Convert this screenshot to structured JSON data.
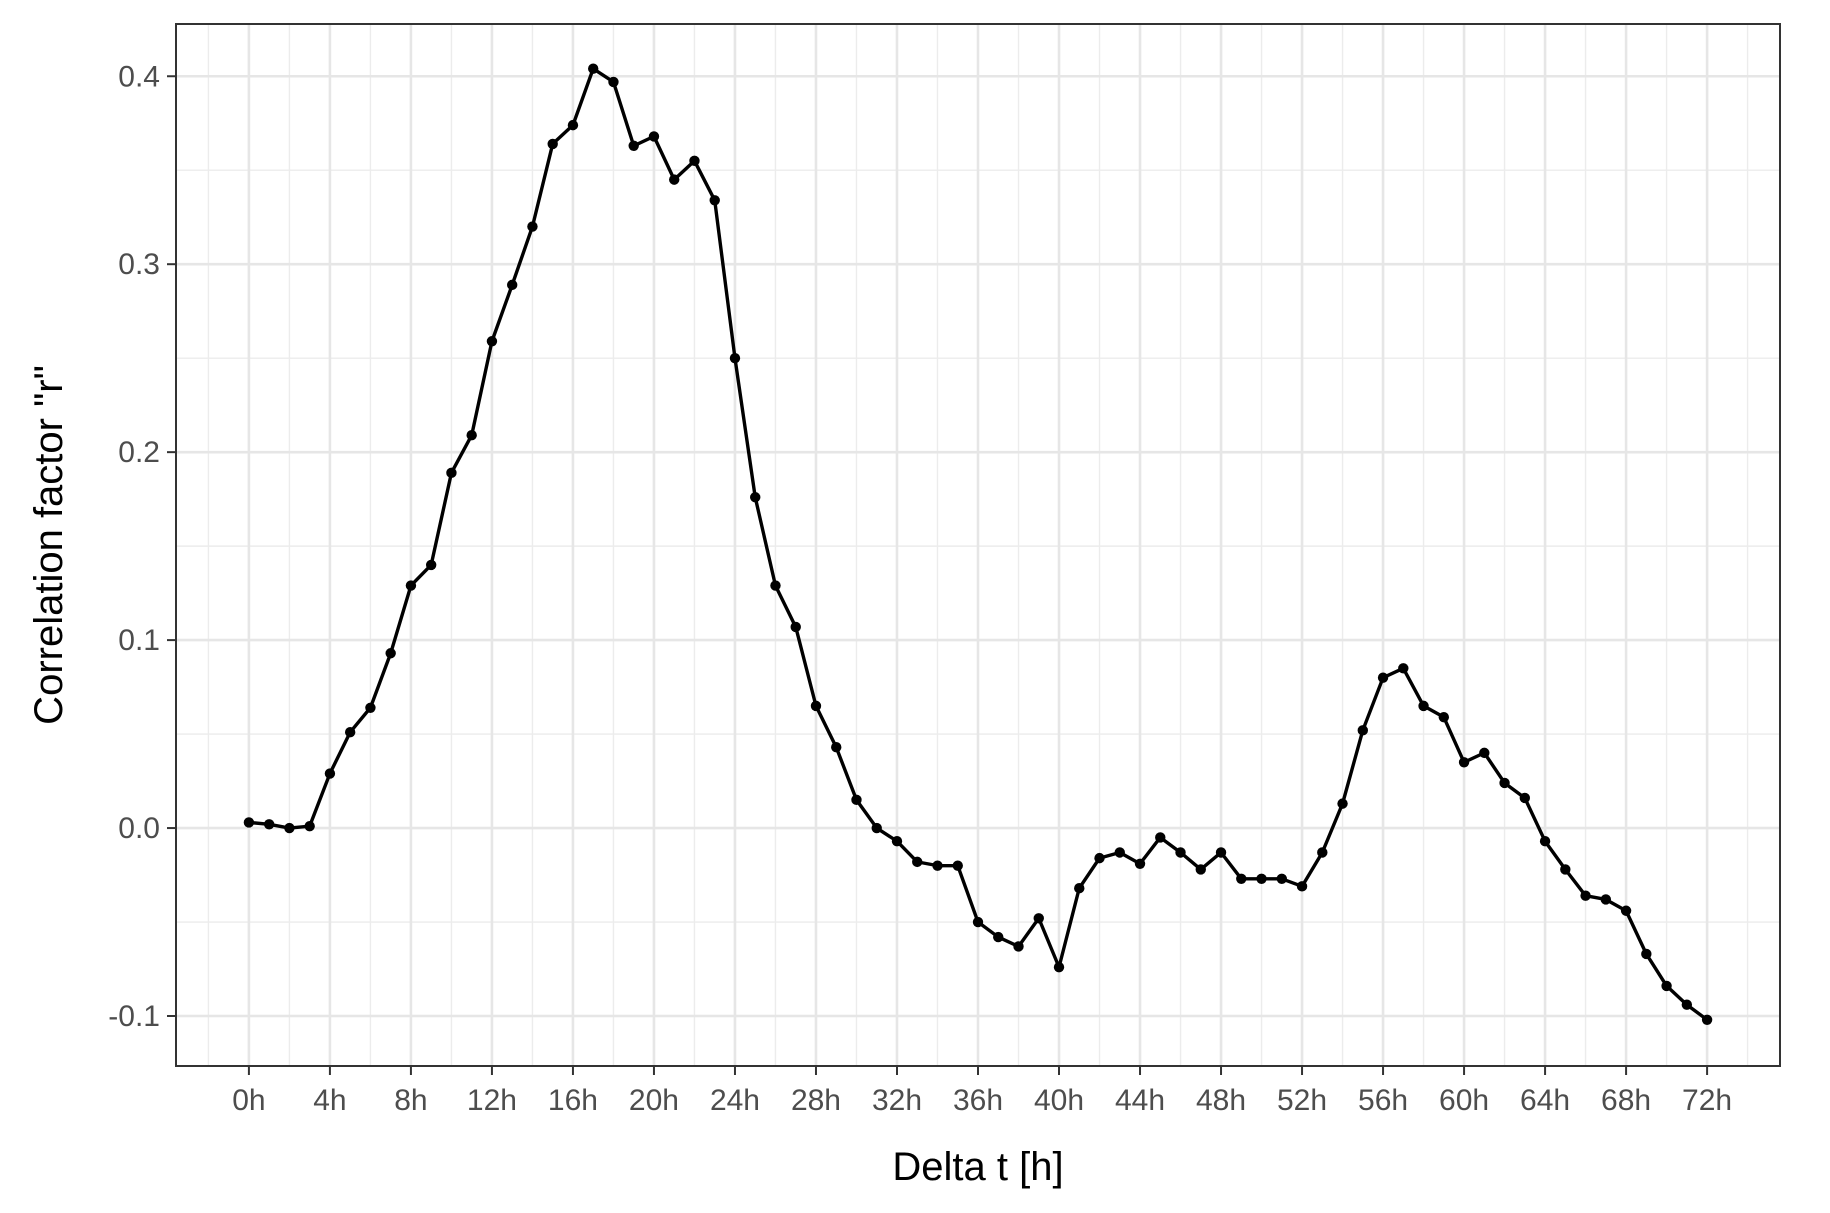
{
  "chart_data": {
    "type": "line",
    "xlabel": "Delta t [h]",
    "ylabel": "Correlation factor \"r\"",
    "xlim": [
      -3.6,
      75.6
    ],
    "ylim": [
      -0.1266,
      0.4278
    ],
    "x_ticks": [
      0,
      4,
      8,
      12,
      16,
      20,
      24,
      28,
      32,
      36,
      40,
      44,
      48,
      52,
      56,
      60,
      64,
      68,
      72
    ],
    "x_tick_labels": [
      "0h",
      "4h",
      "8h",
      "12h",
      "16h",
      "20h",
      "24h",
      "28h",
      "32h",
      "36h",
      "40h",
      "44h",
      "48h",
      "52h",
      "56h",
      "60h",
      "64h",
      "68h",
      "72h"
    ],
    "y_ticks": [
      -0.1,
      0.0,
      0.1,
      0.2,
      0.3,
      0.4
    ],
    "y_tick_labels": [
      "-0.1",
      "0.0",
      "0.1",
      "0.2",
      "0.3",
      "0.4"
    ],
    "grid": true,
    "series": [
      {
        "color": "#000000",
        "x": [
          0,
          1,
          2,
          3,
          4,
          5,
          6,
          7,
          8,
          9,
          10,
          11,
          12,
          13,
          14,
          15,
          16,
          17,
          18,
          19,
          20,
          21,
          22,
          23,
          24,
          25,
          26,
          27,
          28,
          29,
          30,
          31,
          32,
          33,
          34,
          35,
          36,
          37,
          38,
          39,
          40,
          41,
          42,
          43,
          44,
          45,
          46,
          47,
          48,
          49,
          50,
          51,
          52,
          53,
          54,
          55,
          56,
          57,
          58,
          59,
          60,
          61,
          62,
          63,
          64,
          65,
          66,
          67,
          68,
          69,
          70,
          71,
          72
        ],
        "y": [
          0.003,
          0.002,
          0.0,
          0.001,
          0.029,
          0.051,
          0.064,
          0.093,
          0.129,
          0.14,
          0.189,
          0.209,
          0.259,
          0.289,
          0.32,
          0.364,
          0.374,
          0.404,
          0.397,
          0.363,
          0.368,
          0.345,
          0.355,
          0.334,
          0.25,
          0.176,
          0.129,
          0.107,
          0.065,
          0.043,
          0.015,
          0.0,
          -0.007,
          -0.018,
          -0.02,
          -0.02,
          -0.05,
          -0.058,
          -0.063,
          -0.048,
          -0.074,
          -0.032,
          -0.016,
          -0.013,
          -0.019,
          -0.005,
          -0.013,
          -0.022,
          -0.013,
          -0.027,
          -0.027,
          -0.027,
          -0.031,
          -0.013,
          0.013,
          0.052,
          0.08,
          0.085,
          0.065,
          0.059,
          0.035,
          0.04,
          0.024,
          0.016,
          -0.007,
          -0.022,
          -0.036,
          -0.038,
          -0.044,
          -0.067,
          -0.084,
          -0.094,
          -0.102
        ]
      }
    ]
  }
}
